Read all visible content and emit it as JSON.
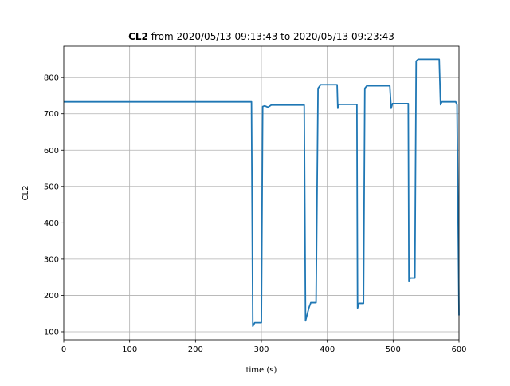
{
  "chart_data": {
    "type": "line",
    "title": {
      "bold": "CL2",
      "text": "from 2020/05/13 09:13:43 to 2020/05/13 09:23:43"
    },
    "xlabel": "time (s)",
    "ylabel": "CL2",
    "x": [
      0,
      285,
      287,
      290,
      300,
      302,
      305,
      310,
      315,
      365,
      367,
      372,
      375,
      383,
      386,
      390,
      415,
      416,
      418,
      445,
      446,
      448,
      455,
      457,
      460,
      495,
      497,
      499,
      523,
      524,
      526,
      533,
      535,
      538,
      570,
      572,
      574,
      595,
      597,
      600
    ],
    "values": [
      733,
      733,
      115,
      125,
      125,
      720,
      722,
      718,
      724,
      724,
      130,
      165,
      180,
      180,
      770,
      780,
      780,
      715,
      726,
      726,
      165,
      178,
      178,
      770,
      777,
      777,
      715,
      728,
      728,
      240,
      248,
      248,
      845,
      850,
      850,
      725,
      733,
      733,
      725,
      145
    ],
    "color": "#1f77b4",
    "xlim": [
      0,
      600
    ],
    "xticks": [
      0,
      100,
      200,
      300,
      400,
      500,
      600
    ],
    "ylim": [
      78,
      886
    ],
    "yticks": [
      100,
      200,
      300,
      400,
      500,
      600,
      700,
      800
    ],
    "grid": true
  }
}
